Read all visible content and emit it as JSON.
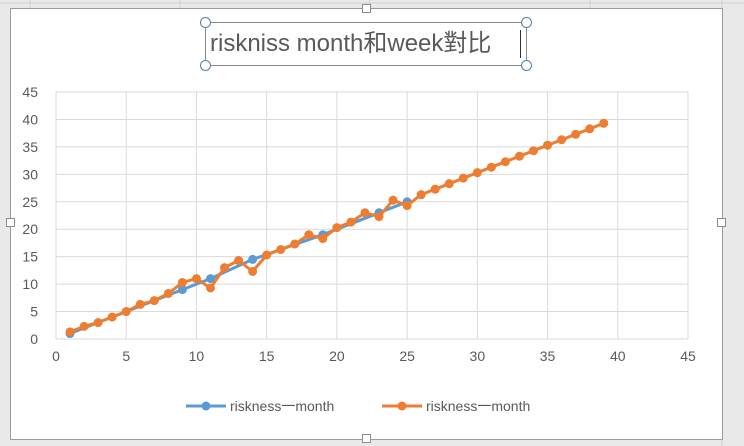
{
  "chart_data": {
    "type": "line",
    "title": "riskniss month和week對比",
    "xlabel": "",
    "ylabel": "",
    "xlim": [
      0,
      45
    ],
    "ylim": [
      0,
      45
    ],
    "xticks": [
      0,
      5,
      10,
      15,
      20,
      25,
      30,
      35,
      40,
      45
    ],
    "yticks": [
      0,
      5,
      10,
      15,
      20,
      25,
      30,
      35,
      40,
      45
    ],
    "grid": true,
    "legend_position": "bottom",
    "series": [
      {
        "name": "riskness一month",
        "color": "#5b9bd5",
        "x": [
          1,
          9,
          11,
          14,
          19,
          23,
          25
        ],
        "y": [
          1,
          9,
          11,
          14.5,
          19,
          23,
          25
        ]
      },
      {
        "name": "riskness一month",
        "color": "#ed7d31",
        "x": [
          1,
          2,
          3,
          4,
          5,
          6,
          7,
          8,
          9,
          10,
          11,
          12,
          13,
          14,
          15,
          16,
          17,
          18,
          19,
          20,
          21,
          22,
          23,
          24,
          25,
          26,
          27,
          28,
          29,
          30,
          31,
          32,
          33,
          34,
          35,
          36,
          37,
          38,
          39
        ],
        "y": [
          1.3,
          2.3,
          3,
          4,
          5,
          6.3,
          7,
          8.3,
          10.3,
          11,
          9.3,
          13,
          14.3,
          12.3,
          15.3,
          16.3,
          17.3,
          19,
          18.3,
          20.3,
          21.3,
          23,
          22.3,
          25.3,
          24.3,
          26.3,
          27.3,
          28.3,
          29.3,
          30.3,
          31.3,
          32.3,
          33.3,
          34.3,
          35.3,
          36.3,
          37.3,
          38.3,
          39.3
        ]
      }
    ]
  }
}
